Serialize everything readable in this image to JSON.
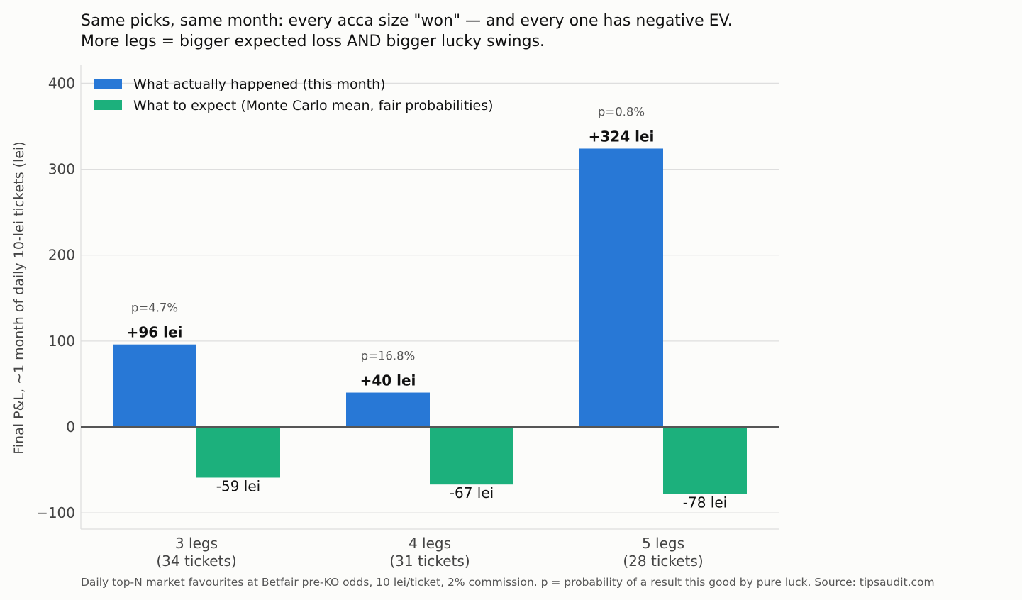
{
  "chart_data": {
    "type": "bar",
    "title_lines": [
      "Same picks, same month: every acca size \"won\" — and every one has negative EV.",
      "More legs = bigger expected loss AND bigger lucky swings."
    ],
    "ylabel": "Final P&L, ~1 month of daily 10-lei tickets (lei)",
    "xlabel": "",
    "ylim": [
      -120,
      405
    ],
    "yticks": [
      -100,
      0,
      100,
      200,
      300,
      400
    ],
    "ytick_labels": [
      "−100",
      "0",
      "100",
      "200",
      "300",
      "400"
    ],
    "grid": "horizontal",
    "legend_placement": "top-left",
    "categories": [
      [
        "3 legs",
        "(34 tickets)"
      ],
      [
        "4 legs",
        "(31 tickets)"
      ],
      [
        "5 legs",
        "(28 tickets)"
      ]
    ],
    "series": [
      {
        "name": "What actually happened (this month)",
        "color": "#2878d6",
        "values": [
          96,
          40,
          324
        ],
        "labels": [
          "+96 lei",
          "+40 lei",
          "+324 lei"
        ]
      },
      {
        "name": "What to expect (Monte Carlo mean, fair probabilities)",
        "color": "#1cb07c",
        "values": [
          -59,
          -67,
          -78
        ],
        "labels": [
          "-59 lei",
          "-67 lei",
          "-78 lei"
        ]
      }
    ],
    "annotations": [
      "p=4.7%",
      "p=16.8%",
      "p=0.8%"
    ],
    "footnote": "Daily top-N market favourites at Betfair pre-KO odds, 10 lei/ticket, 2% commission. p = probability of a result this good by pure luck. Source: tipsaudit.com"
  }
}
